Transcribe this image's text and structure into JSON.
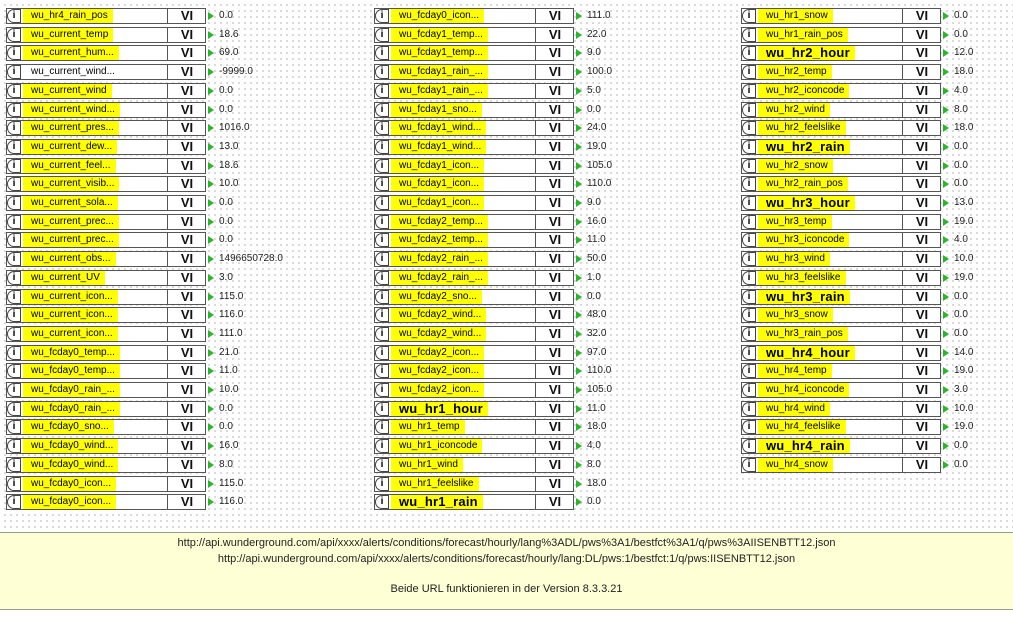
{
  "block_vi_label": "VI",
  "info_icon": "i",
  "columns": [
    {
      "rows": [
        {
          "name": "wu_hr4_rain_pos",
          "value": "0.0"
        },
        {
          "name": "wu_current_temp",
          "value": "18.6"
        },
        {
          "name": "wu_current_hum...",
          "value": "69.0"
        },
        {
          "name": "wu_current_wind...",
          "value": "-9999.0",
          "plain": true
        },
        {
          "name": "wu_current_wind",
          "value": "0.0"
        },
        {
          "name": "wu_current_wind...",
          "value": "0.0"
        },
        {
          "name": "wu_current_pres...",
          "value": "1016.0"
        },
        {
          "name": "wu_current_dew...",
          "value": "13.0"
        },
        {
          "name": "wu_current_feel...",
          "value": "18.6"
        },
        {
          "name": "wu_current_visib...",
          "value": "10.0"
        },
        {
          "name": "wu_current_sola...",
          "value": "0.0"
        },
        {
          "name": "wu_current_prec...",
          "value": "0.0"
        },
        {
          "name": "wu_current_prec...",
          "value": "0.0"
        },
        {
          "name": "wu_current_obs...",
          "value": "1496650728.0"
        },
        {
          "name": "wu_current_UV",
          "value": "3.0"
        },
        {
          "name": "wu_current_icon...",
          "value": "115.0"
        },
        {
          "name": "wu_current_icon...",
          "value": "116.0"
        },
        {
          "name": "wu_current_icon...",
          "value": "111.0"
        },
        {
          "name": "wu_fcday0_temp...",
          "value": "21.0"
        },
        {
          "name": "wu_fcday0_temp...",
          "value": "11.0"
        },
        {
          "name": "wu_fcday0_rain_...",
          "value": "10.0"
        },
        {
          "name": "wu_fcday0_rain_...",
          "value": "0.0"
        },
        {
          "name": "wu_fcday0_sno...",
          "value": "0.0"
        },
        {
          "name": "wu_fcday0_wind...",
          "value": "16.0"
        },
        {
          "name": "wu_fcday0_wind...",
          "value": "8.0"
        },
        {
          "name": "wu_fcday0_icon...",
          "value": "115.0"
        },
        {
          "name": "wu_fcday0_icon...",
          "value": "116.0"
        }
      ]
    },
    {
      "rows": [
        {
          "name": "wu_fcday0_icon...",
          "value": "111.0"
        },
        {
          "name": "wu_fcday1_temp...",
          "value": "22.0"
        },
        {
          "name": "wu_fcday1_temp...",
          "value": "9.0"
        },
        {
          "name": "wu_fcday1_rain_...",
          "value": "100.0"
        },
        {
          "name": "wu_fcday1_rain_...",
          "value": "5.0"
        },
        {
          "name": "wu_fcday1_sno...",
          "value": "0.0"
        },
        {
          "name": "wu_fcday1_wind...",
          "value": "24.0"
        },
        {
          "name": "wu_fcday1_wind...",
          "value": "19.0"
        },
        {
          "name": "wu_fcday1_icon...",
          "value": "105.0"
        },
        {
          "name": "wu_fcday1_icon...",
          "value": "110.0"
        },
        {
          "name": "wu_fcday1_icon...",
          "value": "9.0"
        },
        {
          "name": "wu_fcday2_temp...",
          "value": "16.0"
        },
        {
          "name": "wu_fcday2_temp...",
          "value": "11.0"
        },
        {
          "name": "wu_fcday2_rain_...",
          "value": "50.0"
        },
        {
          "name": "wu_fcday2_rain_...",
          "value": "1.0"
        },
        {
          "name": "wu_fcday2_sno...",
          "value": "0.0"
        },
        {
          "name": "wu_fcday2_wind...",
          "value": "48.0"
        },
        {
          "name": "wu_fcday2_wind...",
          "value": "32.0"
        },
        {
          "name": "wu_fcday2_icon...",
          "value": "97.0"
        },
        {
          "name": "wu_fcday2_icon...",
          "value": "110.0"
        },
        {
          "name": "wu_fcday2_icon...",
          "value": "105.0"
        },
        {
          "name": "wu_hr1_hour",
          "value": "11.0",
          "big": true
        },
        {
          "name": "wu_hr1_temp",
          "value": "18.0"
        },
        {
          "name": "wu_hr1_iconcode",
          "value": "4.0"
        },
        {
          "name": "wu_hr1_wind",
          "value": "8.0"
        },
        {
          "name": "wu_hr1_feelslike",
          "value": "18.0"
        },
        {
          "name": "wu_hr1_rain",
          "value": "0.0",
          "big": true
        }
      ]
    },
    {
      "rows": [
        {
          "name": "wu_hr1_snow",
          "value": "0.0"
        },
        {
          "name": "wu_hr1_rain_pos",
          "value": "0.0"
        },
        {
          "name": "wu_hr2_hour",
          "value": "12.0",
          "big": true
        },
        {
          "name": "wu_hr2_temp",
          "value": "18.0"
        },
        {
          "name": "wu_hr2_iconcode",
          "value": "4.0"
        },
        {
          "name": "wu_hr2_wind",
          "value": "8.0"
        },
        {
          "name": "wu_hr2_feelslike",
          "value": "18.0"
        },
        {
          "name": "wu_hr2_rain",
          "value": "0.0",
          "big": true
        },
        {
          "name": "wu_hr2_snow",
          "value": "0.0"
        },
        {
          "name": "wu_hr2_rain_pos",
          "value": "0.0"
        },
        {
          "name": "wu_hr3_hour",
          "value": "13.0",
          "big": true
        },
        {
          "name": "wu_hr3_temp",
          "value": "19.0"
        },
        {
          "name": "wu_hr3_iconcode",
          "value": "4.0"
        },
        {
          "name": "wu_hr3_wind",
          "value": "10.0"
        },
        {
          "name": "wu_hr3_feelslike",
          "value": "19.0"
        },
        {
          "name": "wu_hr3_rain",
          "value": "0.0",
          "big": true
        },
        {
          "name": "wu_hr3_snow",
          "value": "0.0"
        },
        {
          "name": "wu_hr3_rain_pos",
          "value": "0.0"
        },
        {
          "name": "wu_hr4_hour",
          "value": "14.0",
          "big": true
        },
        {
          "name": "wu_hr4_temp",
          "value": "19.0"
        },
        {
          "name": "wu_hr4_iconcode",
          "value": "3.0"
        },
        {
          "name": "wu_hr4_wind",
          "value": "10.0"
        },
        {
          "name": "wu_hr4_feelslike",
          "value": "19.0"
        },
        {
          "name": "wu_hr4_rain",
          "value": "0.0",
          "big": true
        },
        {
          "name": "wu_hr4_snow",
          "value": "0.0"
        }
      ]
    }
  ],
  "note": {
    "line1": "http://api.wunderground.com/api/xxxx/alerts/conditions/forecast/hourly/lang%3ADL/pws%3A1/bestfct%3A1/q/pws%3AIISENBTT12.json",
    "line2": "http://api.wunderground.com/api/xxxx/alerts/conditions/forecast/hourly/lang:DL/pws:1/bestfct:1/q/pws:IISENBTT12.json",
    "line3": "Beide URL funktionieren in der Version 8.3.3.21"
  }
}
